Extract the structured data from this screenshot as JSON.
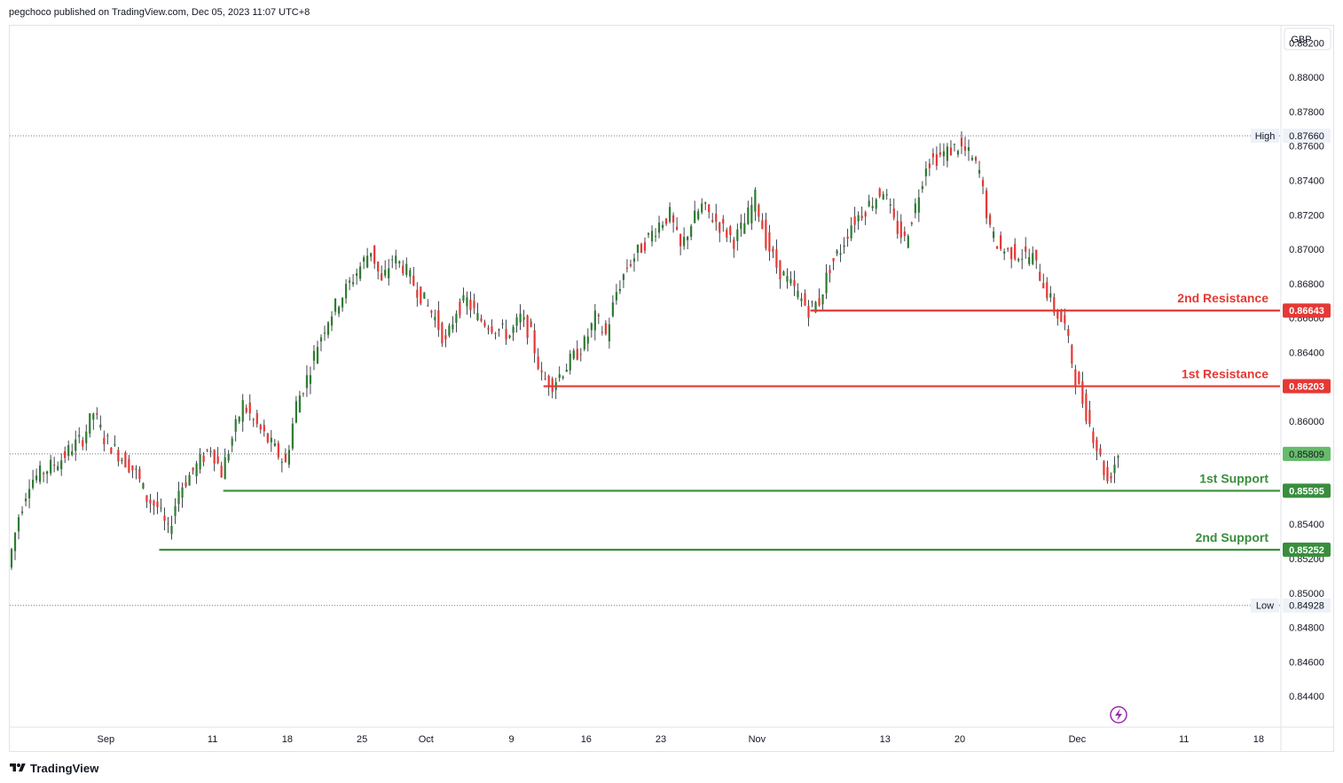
{
  "header": {
    "publisher": "pegchoco published on TradingView.com, Dec 05, 2023 11:07 UTC+8"
  },
  "footer": {
    "brand": "TradingView",
    "logo_icon": "tradingview-logo-icon"
  },
  "colors": {
    "up": "#26a69a",
    "up_body": "#2e7d32",
    "down": "#e53935",
    "resistance": "#e53935",
    "support": "#388e3c",
    "last_price_bg": "#66bb6a",
    "grid": "#f0f3fa"
  },
  "chart_data": {
    "type": "candlestick",
    "currency": "GBP",
    "ylim": [
      0.8422,
      0.883
    ],
    "y_ticks": [
      "0.88200",
      "0.88000",
      "0.87800",
      "0.87600",
      "0.87400",
      "0.87200",
      "0.87000",
      "0.86800",
      "0.86600",
      "0.86400",
      "0.86200",
      "0.86000",
      "0.85800",
      "0.85600",
      "0.85400",
      "0.85200",
      "0.85000",
      "0.84800",
      "0.84600",
      "0.84400"
    ],
    "y_tick_values": [
      0.882,
      0.88,
      0.878,
      0.876,
      0.874,
      0.872,
      0.87,
      0.868,
      0.866,
      0.864,
      0.862,
      0.86,
      0.858,
      0.856,
      0.854,
      0.852,
      0.85,
      0.848,
      0.846,
      0.844
    ],
    "x_ticks": [
      {
        "label": "Sep",
        "date": "2023-09-01"
      },
      {
        "label": "11",
        "date": "2023-09-11"
      },
      {
        "label": "18",
        "date": "2023-09-18"
      },
      {
        "label": "25",
        "date": "2023-09-25"
      },
      {
        "label": "Oct",
        "date": "2023-10-01"
      },
      {
        "label": "9",
        "date": "2023-10-09"
      },
      {
        "label": "16",
        "date": "2023-10-16"
      },
      {
        "label": "23",
        "date": "2023-10-23"
      },
      {
        "label": "Nov",
        "date": "2023-11-01"
      },
      {
        "label": "13",
        "date": "2023-11-13"
      },
      {
        "label": "20",
        "date": "2023-11-20"
      },
      {
        "label": "Dec",
        "date": "2023-12-01"
      },
      {
        "label": "11",
        "date": "2023-12-11"
      },
      {
        "label": "18",
        "date": "2023-12-18"
      }
    ],
    "xlim": [
      "2023-08-23",
      "2023-12-20"
    ],
    "high": {
      "label": "High",
      "value": "0.87660"
    },
    "low": {
      "label": "Low",
      "value": "0.84928"
    },
    "last_price": "0.85809",
    "levels": [
      {
        "name": "2nd Resistance",
        "value": "0.86643",
        "kind": "resistance",
        "start": "2023-11-06"
      },
      {
        "name": "1st Resistance",
        "value": "0.86203",
        "kind": "resistance",
        "start": "2023-10-12"
      },
      {
        "name": "1st Support",
        "value": "0.85595",
        "kind": "support",
        "start": "2023-09-12"
      },
      {
        "name": "2nd Support",
        "value": "0.85252",
        "kind": "support",
        "start": "2023-09-06"
      }
    ],
    "price_path": [
      [
        "2023-08-23",
        0.8515
      ],
      [
        "2023-08-24",
        0.8545
      ],
      [
        "2023-08-25",
        0.8565
      ],
      [
        "2023-08-28",
        0.8578
      ],
      [
        "2023-08-29",
        0.8585
      ],
      [
        "2023-08-30",
        0.859
      ],
      [
        "2023-08-31",
        0.8605
      ],
      [
        "2023-09-01",
        0.859
      ],
      [
        "2023-09-04",
        0.857
      ],
      [
        "2023-09-05",
        0.8555
      ],
      [
        "2023-09-06",
        0.855
      ],
      [
        "2023-09-07",
        0.8535
      ],
      [
        "2023-09-08",
        0.856
      ],
      [
        "2023-09-11",
        0.8585
      ],
      [
        "2023-09-12",
        0.857
      ],
      [
        "2023-09-13",
        0.859
      ],
      [
        "2023-09-14",
        0.861
      ],
      [
        "2023-09-15",
        0.86
      ],
      [
        "2023-09-18",
        0.8575
      ],
      [
        "2023-09-19",
        0.861
      ],
      [
        "2023-09-20",
        0.8625
      ],
      [
        "2023-09-21",
        0.8645
      ],
      [
        "2023-09-22",
        0.866
      ],
      [
        "2023-09-25",
        0.869
      ],
      [
        "2023-09-26",
        0.87
      ],
      [
        "2023-09-27",
        0.868
      ],
      [
        "2023-09-28",
        0.8695
      ],
      [
        "2023-09-29",
        0.869
      ],
      [
        "2023-10-02",
        0.866
      ],
      [
        "2023-10-03",
        0.8645
      ],
      [
        "2023-10-04",
        0.8665
      ],
      [
        "2023-10-05",
        0.867
      ],
      [
        "2023-10-06",
        0.866
      ],
      [
        "2023-10-09",
        0.865
      ],
      [
        "2023-10-10",
        0.866
      ],
      [
        "2023-10-11",
        0.865
      ],
      [
        "2023-10-12",
        0.8625
      ],
      [
        "2023-10-13",
        0.8622
      ],
      [
        "2023-10-16",
        0.8645
      ],
      [
        "2023-10-17",
        0.866
      ],
      [
        "2023-10-18",
        0.865
      ],
      [
        "2023-10-19",
        0.8675
      ],
      [
        "2023-10-20",
        0.869
      ],
      [
        "2023-10-23",
        0.8715
      ],
      [
        "2023-10-24",
        0.872
      ],
      [
        "2023-10-25",
        0.87
      ],
      [
        "2023-10-26",
        0.8715
      ],
      [
        "2023-10-27",
        0.8725
      ],
      [
        "2023-10-30",
        0.8705
      ],
      [
        "2023-10-31",
        0.8715
      ],
      [
        "2023-11-01",
        0.873
      ],
      [
        "2023-11-02",
        0.8705
      ],
      [
        "2023-11-03",
        0.869
      ],
      [
        "2023-11-06",
        0.8665
      ],
      [
        "2023-11-07",
        0.867
      ],
      [
        "2023-11-08",
        0.869
      ],
      [
        "2023-11-09",
        0.87
      ],
      [
        "2023-11-10",
        0.8715
      ],
      [
        "2023-11-13",
        0.8735
      ],
      [
        "2023-11-14",
        0.8715
      ],
      [
        "2023-11-15",
        0.8705
      ],
      [
        "2023-11-16",
        0.8725
      ],
      [
        "2023-11-17",
        0.875
      ],
      [
        "2023-11-20",
        0.876
      ],
      [
        "2023-11-21",
        0.8755
      ],
      [
        "2023-11-22",
        0.8745
      ],
      [
        "2023-11-23",
        0.871
      ],
      [
        "2023-11-24",
        0.87
      ],
      [
        "2023-11-27",
        0.8695
      ],
      [
        "2023-11-28",
        0.868
      ],
      [
        "2023-11-29",
        0.8665
      ],
      [
        "2023-11-30",
        0.8655
      ],
      [
        "2023-12-01",
        0.8625
      ],
      [
        "2023-12-04",
        0.8565
      ],
      [
        "2023-12-05",
        0.8581
      ]
    ]
  }
}
